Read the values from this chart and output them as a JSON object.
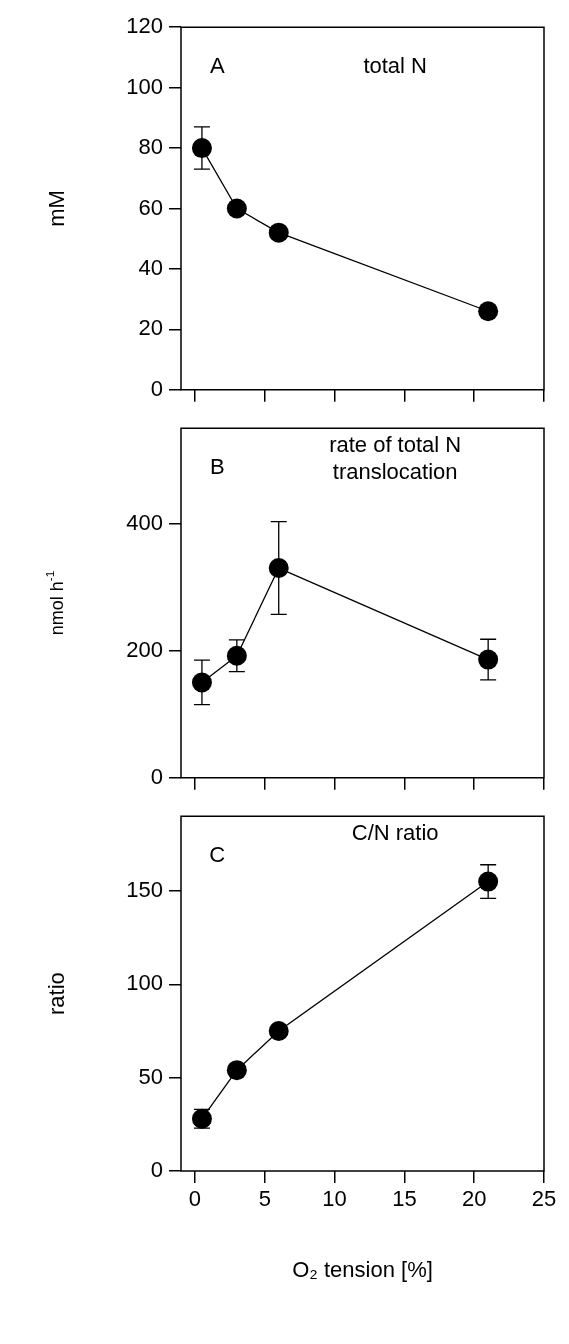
{
  "chart_data": [
    {
      "type": "line",
      "title": "total N",
      "annotations": [
        "A"
      ],
      "ylabel": "mM",
      "x": [
        0.5,
        3,
        6,
        21
      ],
      "xlim": [
        -1,
        25
      ],
      "xticks": [
        0,
        5,
        10,
        15,
        20,
        25
      ],
      "ylim": [
        0,
        120
      ],
      "yticks": [
        0,
        20,
        40,
        60,
        80,
        100,
        120
      ],
      "tick_labels": "y",
      "marker": "circle",
      "series": [
        {
          "color": "#000000",
          "values": [
            80,
            60,
            52,
            26
          ],
          "errors": [
            7,
            null,
            null,
            null
          ]
        }
      ]
    },
    {
      "type": "line",
      "title": "rate of total N translocation",
      "annotations": [
        "B"
      ],
      "ylabel": "nmol h$^{-1}$",
      "x": [
        0.5,
        3,
        6,
        21
      ],
      "xlim": [
        -1,
        25
      ],
      "xticks": [
        0,
        5,
        10,
        15,
        20,
        25
      ],
      "ylim": [
        0,
        550
      ],
      "yticks": [
        0,
        200,
        400
      ],
      "tick_labels": "y",
      "marker": "circle",
      "series": [
        {
          "color": "#000000",
          "values": [
            150,
            192,
            330,
            186
          ],
          "errors": [
            35,
            25,
            73,
            32
          ]
        }
      ]
    },
    {
      "type": "line",
      "title": "C/N ratio",
      "annotations": [
        "C"
      ],
      "ylabel": "ratio",
      "xlabel": "O₂ tension [%]",
      "x": [
        0.5,
        3,
        6,
        21
      ],
      "xlim": [
        -1,
        25
      ],
      "xticks": [
        0,
        5,
        10,
        15,
        20,
        25
      ],
      "ylim": [
        0,
        190
      ],
      "yticks": [
        0,
        50,
        100,
        150
      ],
      "marker": "circle",
      "series": [
        {
          "color": "#000000",
          "values": [
            28,
            54,
            75,
            155
          ],
          "errors": [
            5,
            null,
            null,
            9
          ]
        }
      ]
    }
  ]
}
